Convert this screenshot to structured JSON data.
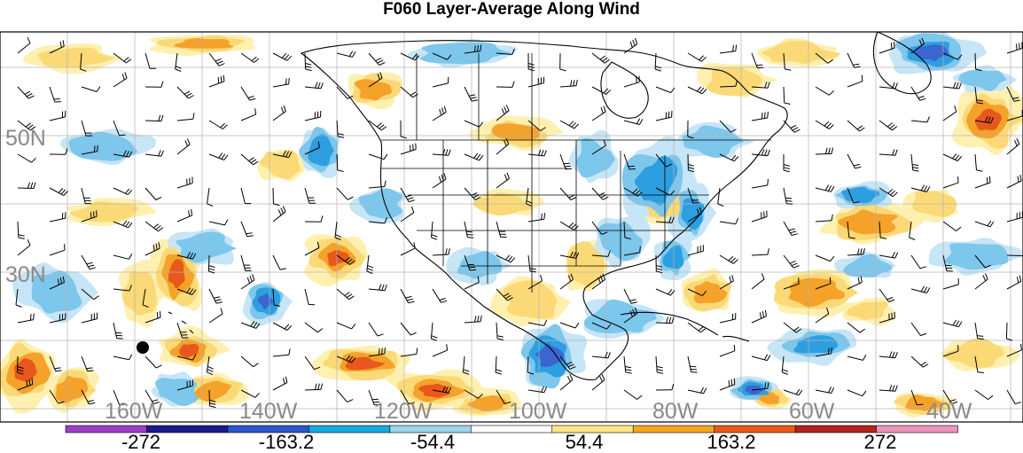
{
  "title": "F060 Layer-Average Along Wind",
  "latitude_labels": [
    "50N",
    "30N"
  ],
  "longitude_labels": [
    "160W",
    "140W",
    "120W",
    "100W",
    "80W",
    "60W",
    "40W"
  ],
  "colorbar": {
    "tick_labels": [
      "-272",
      "-163.2",
      "-54.4",
      "54.4",
      "163.2",
      "272"
    ],
    "colors": [
      "#9b3fc7",
      "#1a1a8c",
      "#2d57c9",
      "#1aa8e0",
      "#9dd3ef",
      "#ffffff",
      "#ffe58a",
      "#f5a623",
      "#e8581c",
      "#b2231a",
      "#f093b8"
    ]
  },
  "palette": {
    "light_blue": "#c6e5f6",
    "mid_blue": "#7dc6ec",
    "blue": "#2d9fe0",
    "royal_blue": "#3c65cf",
    "dark_blue": "#3b3ba8",
    "light_yellow": "#fff0b0",
    "yellow": "#fbd977",
    "orange": "#f4a22a",
    "red_orange": "#e8581c",
    "red": "#c82a1e",
    "dark_red": "#8c1a14",
    "coast": "#000000",
    "grid": "#b4b4b4"
  }
}
